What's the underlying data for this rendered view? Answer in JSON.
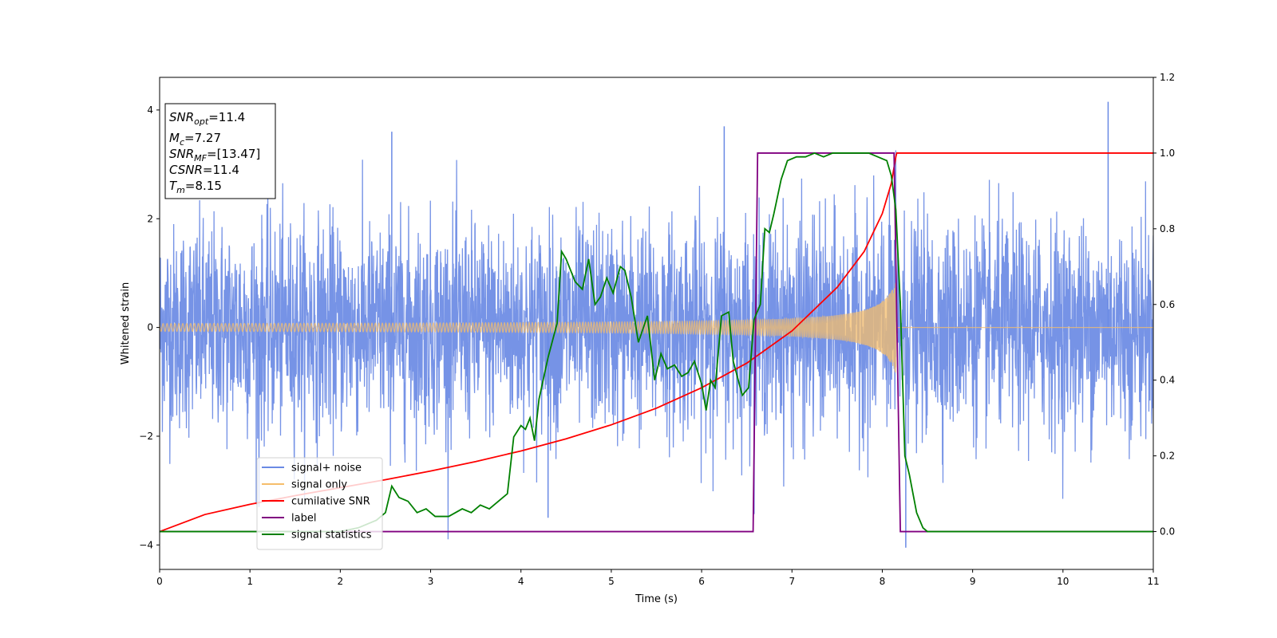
{
  "chart_data": {
    "type": "line",
    "xlabel": "Time (s)",
    "ylabel": "Whitened strain",
    "xlim": [
      0,
      11
    ],
    "ylim": [
      -4.45,
      4.6
    ],
    "y2lim": [
      -0.1,
      1.2
    ],
    "x_ticks": [
      0,
      1,
      2,
      3,
      4,
      5,
      6,
      7,
      8,
      9,
      10,
      11
    ],
    "y_ticks": [
      -4,
      -2,
      0,
      2,
      4
    ],
    "y2_ticks": [
      "0.0",
      "0.2",
      "0.4",
      "0.6",
      "0.8",
      "1.0",
      "1.2"
    ],
    "legend_placement": "lower-left",
    "grid": false,
    "info_box": {
      "lines": [
        {
          "name": "SNR",
          "sub": "opt",
          "value": "=11.4"
        },
        {
          "name": "M",
          "sub": "c",
          "value": "=7.27"
        },
        {
          "name": "SNR",
          "sub": "MF",
          "value": "=[13.47]"
        },
        {
          "name": "CSNR",
          "sub": "",
          "value": "=11.4"
        },
        {
          "name": "T",
          "sub": "m",
          "value": "=8.15"
        }
      ]
    },
    "series": [
      {
        "name": "signal+ noise",
        "axis": "left",
        "color": "#6A8AE4",
        "kind": "noise",
        "noise_sigma": 1.0,
        "x_range": [
          0,
          11
        ],
        "envelope_peaks": {
          "max": 4.15,
          "min": -4.05
        }
      },
      {
        "name": "signal only",
        "axis": "left",
        "color": "#F5BD6B",
        "kind": "chirp",
        "t_merge": 8.15,
        "amplitude_start": 0.05,
        "amplitude_end": 0.85
      },
      {
        "name": "cumilative SNR",
        "axis": "right",
        "color": "#FF0000",
        "x": [
          0,
          0.5,
          1.0,
          1.5,
          2.0,
          2.5,
          3.0,
          3.5,
          4.0,
          4.5,
          5.0,
          5.5,
          6.0,
          6.5,
          7.0,
          7.5,
          7.8,
          8.0,
          8.1,
          8.15,
          8.16,
          11
        ],
        "y": [
          0.0,
          0.045,
          0.072,
          0.095,
          0.116,
          0.137,
          0.16,
          0.185,
          0.213,
          0.245,
          0.282,
          0.326,
          0.38,
          0.445,
          0.53,
          0.645,
          0.74,
          0.84,
          0.92,
          0.99,
          1.0,
          1.0
        ]
      },
      {
        "name": "label",
        "axis": "right",
        "color": "#800080",
        "x": [
          0,
          6.57,
          6.62,
          8.13,
          8.2,
          11
        ],
        "y": [
          0.0,
          0.0,
          1.0,
          1.0,
          0.0,
          0.0
        ]
      },
      {
        "name": "signal statistics",
        "axis": "right",
        "color": "#008000",
        "x": [
          0,
          0.5,
          1.0,
          1.5,
          2.0,
          2.2,
          2.3,
          2.4,
          2.5,
          2.57,
          2.65,
          2.75,
          2.85,
          2.95,
          3.05,
          3.2,
          3.35,
          3.45,
          3.55,
          3.65,
          3.75,
          3.85,
          3.92,
          4.0,
          4.05,
          4.1,
          4.15,
          4.2,
          4.3,
          4.4,
          4.45,
          4.5,
          4.6,
          4.68,
          4.75,
          4.82,
          4.88,
          4.95,
          5.02,
          5.1,
          5.15,
          5.22,
          5.3,
          5.4,
          5.48,
          5.55,
          5.62,
          5.7,
          5.78,
          5.85,
          5.92,
          6.0,
          6.05,
          6.1,
          6.15,
          6.22,
          6.3,
          6.35,
          6.45,
          6.52,
          6.58,
          6.65,
          6.7,
          6.75,
          6.8,
          6.88,
          6.95,
          7.05,
          7.15,
          7.25,
          7.35,
          7.45,
          7.55,
          7.65,
          7.75,
          7.85,
          7.95,
          8.05,
          8.1,
          8.15,
          8.2,
          8.25,
          8.3,
          8.38,
          8.45,
          8.5,
          8.6,
          9.0,
          10.0,
          11.0
        ],
        "y": [
          0.0,
          0.0,
          0.0,
          0.0,
          0.0,
          0.01,
          0.02,
          0.03,
          0.05,
          0.12,
          0.09,
          0.08,
          0.05,
          0.06,
          0.04,
          0.04,
          0.06,
          0.05,
          0.07,
          0.06,
          0.08,
          0.1,
          0.25,
          0.28,
          0.27,
          0.3,
          0.24,
          0.35,
          0.46,
          0.55,
          0.74,
          0.72,
          0.66,
          0.64,
          0.72,
          0.6,
          0.62,
          0.67,
          0.63,
          0.7,
          0.69,
          0.62,
          0.5,
          0.57,
          0.4,
          0.47,
          0.43,
          0.44,
          0.41,
          0.42,
          0.45,
          0.39,
          0.32,
          0.4,
          0.38,
          0.57,
          0.58,
          0.45,
          0.36,
          0.38,
          0.56,
          0.6,
          0.8,
          0.79,
          0.84,
          0.93,
          0.98,
          0.99,
          0.99,
          1.0,
          0.99,
          1.0,
          1.0,
          1.0,
          1.0,
          1.0,
          0.99,
          0.98,
          0.94,
          0.85,
          0.6,
          0.2,
          0.15,
          0.05,
          0.01,
          0.0,
          0.0,
          0.0,
          0.0,
          0.0
        ]
      }
    ]
  }
}
